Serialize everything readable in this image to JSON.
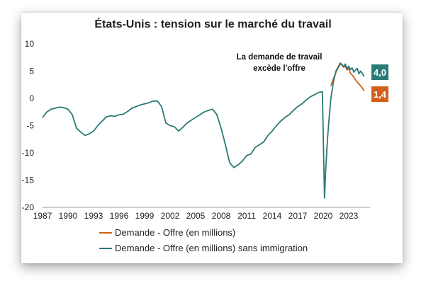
{
  "chart_data": {
    "type": "line",
    "title": "États-Unis : tension sur le marché du travail",
    "xlabel": "",
    "ylabel": "",
    "ylim": [
      -20,
      10
    ],
    "xlim": [
      1987,
      2025.5
    ],
    "yticks": [
      "10",
      "5",
      "0",
      "-5",
      "-10",
      "-15",
      "-20"
    ],
    "ytick_values": [
      10,
      5,
      0,
      -5,
      -10,
      -15,
      -20
    ],
    "xticks": [
      "1987",
      "1990",
      "1993",
      "1996",
      "1999",
      "2002",
      "2005",
      "2008",
      "2011",
      "2014",
      "2017",
      "2020",
      "2023"
    ],
    "xtick_values": [
      1987,
      1990,
      1993,
      1996,
      1999,
      2002,
      2005,
      2008,
      2011,
      2014,
      2017,
      2020,
      2023
    ],
    "grid": false,
    "legend_position": "bottom",
    "annotation": [
      "La demande de travail",
      "excède l'offre"
    ],
    "series": [
      {
        "name": "Demande - Offre (en millions)",
        "color": "#D2601A",
        "end_label": "1,4",
        "x": [
          2020.9,
          2021.2,
          2021.5,
          2021.8,
          2022.0,
          2022.2,
          2022.4,
          2022.6,
          2022.8,
          2023.0,
          2023.2,
          2023.4,
          2023.6,
          2023.8,
          2024.0,
          2024.2,
          2024.4,
          2024.6,
          2024.8
        ],
        "y": [
          2.3,
          3.6,
          4.8,
          5.7,
          6.3,
          6.1,
          5.7,
          5.9,
          5.2,
          5.5,
          4.6,
          4.3,
          3.9,
          3.4,
          3.0,
          2.6,
          2.3,
          1.9,
          1.4
        ]
      },
      {
        "name": "Demande - Offre (en millions) sans immigration",
        "color": "#2A7A77",
        "end_label": "4,0",
        "x": [
          1987.0,
          1987.5,
          1988.0,
          1988.5,
          1989.0,
          1989.5,
          1990.0,
          1990.5,
          1991.0,
          1991.5,
          1992.0,
          1992.5,
          1993.0,
          1993.5,
          1994.0,
          1994.5,
          1995.0,
          1995.5,
          1996.0,
          1996.5,
          1997.0,
          1997.5,
          1998.0,
          1998.5,
          1999.0,
          1999.5,
          2000.0,
          2000.5,
          2001.0,
          2001.5,
          2002.0,
          2002.5,
          2003.0,
          2003.5,
          2004.0,
          2004.5,
          2005.0,
          2005.5,
          2006.0,
          2006.5,
          2007.0,
          2007.5,
          2008.0,
          2008.5,
          2009.0,
          2009.5,
          2010.0,
          2010.5,
          2011.0,
          2011.5,
          2012.0,
          2012.5,
          2013.0,
          2013.5,
          2014.0,
          2014.5,
          2015.0,
          2015.5,
          2016.0,
          2016.5,
          2017.0,
          2017.5,
          2018.0,
          2018.5,
          2019.0,
          2019.5,
          2019.9,
          2020.15,
          2020.3,
          2020.5,
          2020.7,
          2020.9,
          2021.2,
          2021.5,
          2021.8,
          2022.0,
          2022.2,
          2022.4,
          2022.6,
          2022.8,
          2023.0,
          2023.2,
          2023.4,
          2023.6,
          2023.8,
          2024.0,
          2024.2,
          2024.4,
          2024.6,
          2024.8
        ],
        "y": [
          -3.5,
          -2.5,
          -2.0,
          -1.8,
          -1.6,
          -1.7,
          -2.0,
          -3.0,
          -5.5,
          -6.2,
          -6.8,
          -6.5,
          -6.0,
          -5.0,
          -4.2,
          -3.4,
          -3.2,
          -3.3,
          -3.0,
          -2.9,
          -2.4,
          -1.8,
          -1.5,
          -1.2,
          -1.0,
          -0.8,
          -0.5,
          -0.5,
          -1.5,
          -4.5,
          -5.0,
          -5.2,
          -6.0,
          -5.3,
          -4.5,
          -4.0,
          -3.5,
          -3.0,
          -2.5,
          -2.2,
          -2.0,
          -3.0,
          -5.5,
          -8.5,
          -11.8,
          -12.7,
          -12.2,
          -11.5,
          -10.5,
          -10.2,
          -9.0,
          -8.5,
          -8.0,
          -6.8,
          -6.0,
          -5.0,
          -4.2,
          -3.5,
          -3.0,
          -2.2,
          -1.5,
          -1.0,
          -0.3,
          0.3,
          0.7,
          1.1,
          1.2,
          -18.3,
          -13.0,
          -7.5,
          -3.5,
          0.0,
          3.0,
          5.0,
          5.9,
          6.5,
          6.2,
          5.8,
          6.3,
          5.4,
          5.9,
          5.3,
          5.6,
          4.8,
          5.2,
          5.5,
          4.5,
          5.0,
          4.6,
          4.0
        ]
      }
    ]
  }
}
